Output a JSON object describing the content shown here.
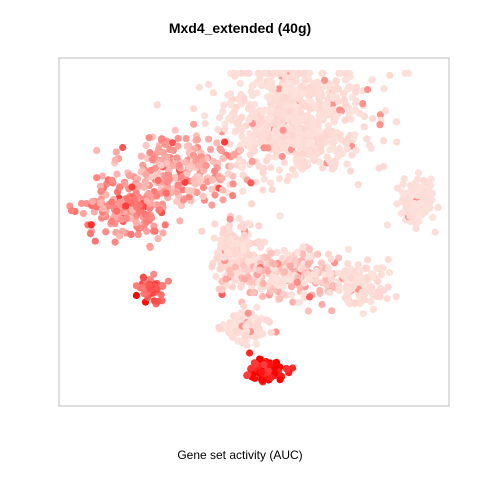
{
  "chart_data": {
    "type": "scatter",
    "title": "Mxd4_extended (40g)",
    "xlabel": "Gene set activity (AUC)",
    "ylabel": "",
    "grid": false,
    "legend": "none",
    "axes_visible": false,
    "colors": {
      "low": "#fde2dc",
      "high": "#ff0000",
      "frame": "#bfbfbf"
    },
    "points_note": "dense t-SNE style clusters; color encodes AUC",
    "clusters": [
      {
        "x": 0.62,
        "y": 0.85,
        "sx": 0.17,
        "sy": 0.17,
        "n": 700,
        "level": 0.05
      },
      {
        "x": 0.93,
        "y": 0.6,
        "sx": 0.045,
        "sy": 0.07,
        "n": 130,
        "level": 0.03
      },
      {
        "x": 0.3,
        "y": 0.7,
        "sx": 0.15,
        "sy": 0.1,
        "n": 230,
        "level": 0.25
      },
      {
        "x": 0.16,
        "y": 0.58,
        "sx": 0.1,
        "sy": 0.08,
        "n": 180,
        "level": 0.35
      },
      {
        "x": 0.45,
        "y": 0.45,
        "sx": 0.06,
        "sy": 0.09,
        "n": 180,
        "level": 0.08
      },
      {
        "x": 0.58,
        "y": 0.38,
        "sx": 0.13,
        "sy": 0.07,
        "n": 260,
        "level": 0.1
      },
      {
        "x": 0.78,
        "y": 0.35,
        "sx": 0.07,
        "sy": 0.06,
        "n": 120,
        "level": 0.05
      },
      {
        "x": 0.48,
        "y": 0.22,
        "sx": 0.07,
        "sy": 0.04,
        "n": 90,
        "level": 0.05
      },
      {
        "x": 0.23,
        "y": 0.34,
        "sx": 0.035,
        "sy": 0.035,
        "n": 60,
        "level": 0.55
      },
      {
        "x": 0.53,
        "y": 0.09,
        "sx": 0.05,
        "sy": 0.028,
        "n": 110,
        "level": 0.9
      }
    ]
  }
}
